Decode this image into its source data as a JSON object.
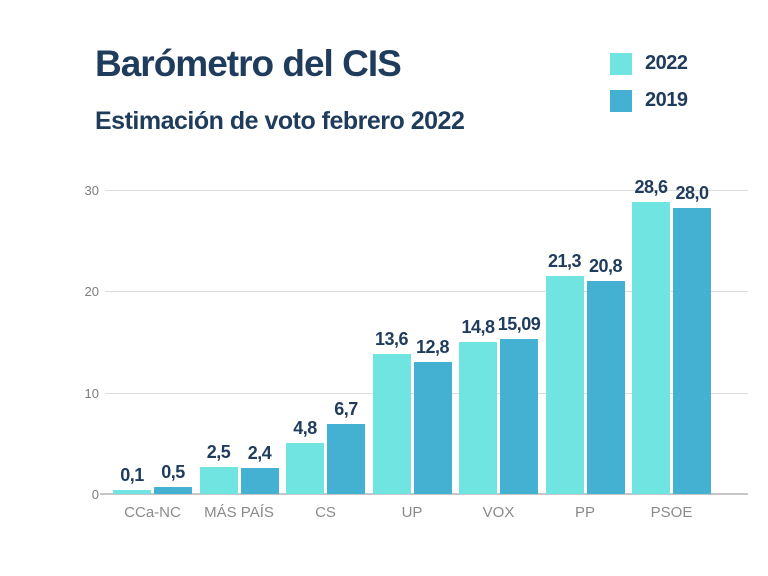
{
  "title": "Barómetro del CIS",
  "subtitle": "Estimación de voto febrero 2022",
  "colors": {
    "title_navy": "#1f3c5d",
    "series_2022": "#70e4e0",
    "series_2019": "#45b1d2",
    "axis_text_gray": "#8a8a8a",
    "ytick_gray": "#7d7d7d",
    "gridline_gray": "#dcdcdc",
    "baseline_gray": "#c6c6c6",
    "background": "#ffffff"
  },
  "legend": [
    {
      "label": "2022",
      "color": "#70e4e0"
    },
    {
      "label": "2019",
      "color": "#45b1d2"
    }
  ],
  "chart_data": {
    "type": "bar",
    "title": "Barómetro del CIS",
    "subtitle": "Estimación de voto febrero 2022",
    "categories": [
      "CCa-NC",
      "MÁS PAÍS",
      "CS",
      "UP",
      "VOX",
      "PP",
      "PSOE"
    ],
    "series": [
      {
        "name": "2022",
        "color": "#70e4e0",
        "values": [
          0.1,
          2.5,
          4.8,
          13.6,
          14.8,
          21.3,
          28.6
        ],
        "labels": [
          "0,1",
          "2,5",
          "4,8",
          "13,6",
          "14,8",
          "21,3",
          "28,6"
        ]
      },
      {
        "name": "2019",
        "color": "#45b1d2",
        "values": [
          0.5,
          2.4,
          6.7,
          12.8,
          15.09,
          20.8,
          28.0
        ],
        "labels": [
          "0,5",
          "2,4",
          "6,7",
          "12,8",
          "15,09",
          "20,8",
          "28,0"
        ]
      }
    ],
    "xlabel": "",
    "ylabel": "",
    "ylim": [
      0,
      30
    ],
    "yticks": [
      0,
      10,
      20,
      30
    ],
    "grid": true,
    "legend_position": "top-right"
  }
}
